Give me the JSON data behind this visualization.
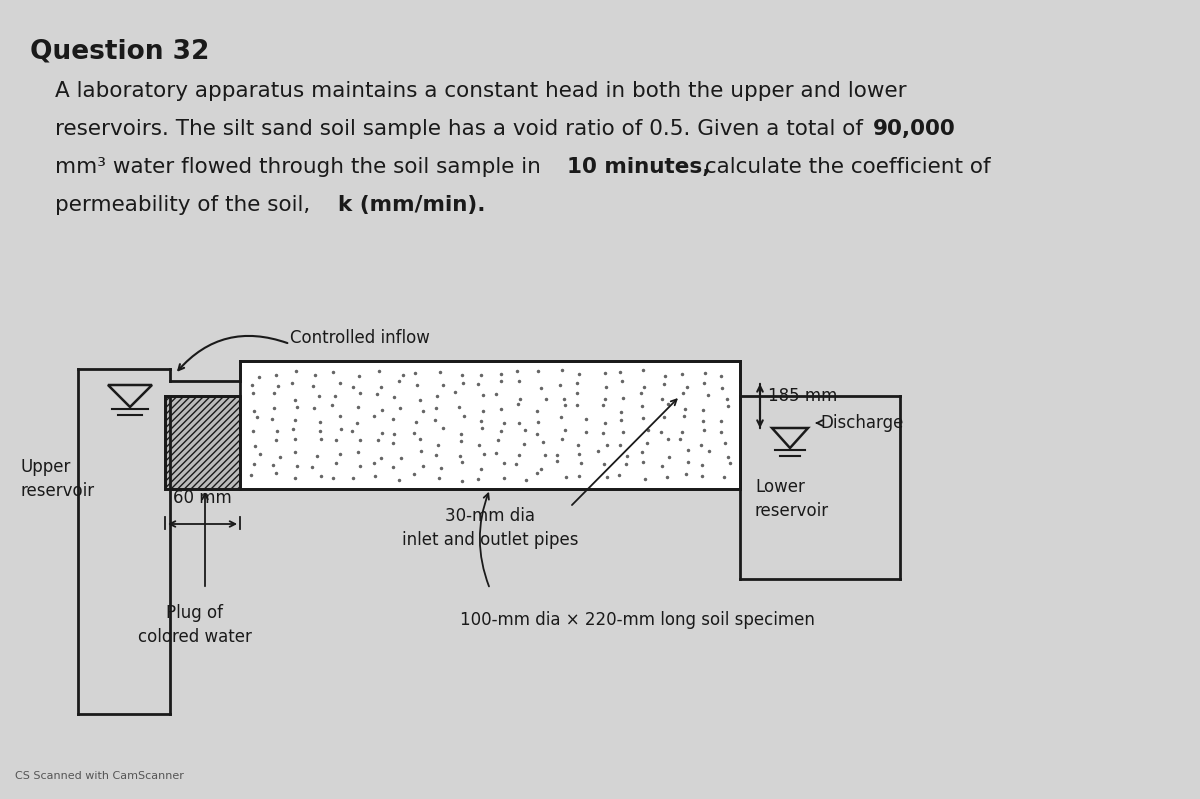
{
  "title": "Question 32",
  "bg_color": "#d4d4d4",
  "line_color": "#1a1a1a",
  "text_color": "#1a1a1a",
  "diagram_labels": {
    "controlled_inflow": "Controlled inflow",
    "upper_reservoir": "Upper\nreservoir",
    "lower_reservoir": "Lower\nreservoir",
    "discharge": "Discharge",
    "dim_185": "185 mm",
    "dim_60": "60 mm",
    "pipe_label": "30-mm dia\ninlet and outlet pipes",
    "plug_label": "Plug of\ncolored water",
    "specimen_label": "100-mm dia × 220-mm long soil specimen"
  },
  "footer": "CS Scanned with CamScanner",
  "para_lines": [
    [
      "A laboratory apparatus maintains a constant head in both the upper and lower",
      []
    ],
    [
      "reservoirs. The silt sand soil sample has a void ratio of 0.5. Given a total of ",
      [
        "90,000"
      ]
    ],
    [
      "mm³ water flowed through the soil sample in ",
      [
        "10 minutes,"
      ],
      " calculate the coefficient of"
    ],
    [
      "permeability of the soil, ",
      [
        "k (mm/min)."
      ]
    ]
  ]
}
